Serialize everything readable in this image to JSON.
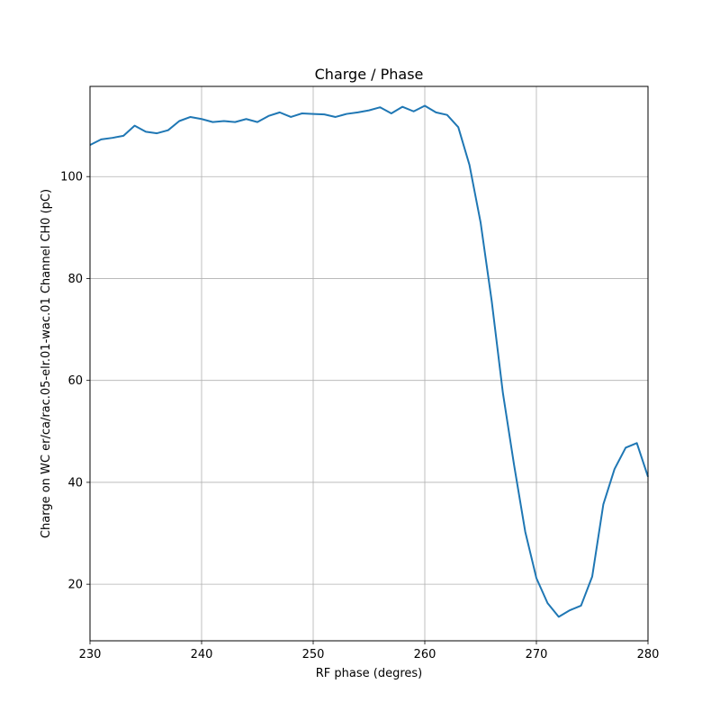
{
  "chart_data": {
    "type": "line",
    "title": "Charge / Phase",
    "xlabel": "RF phase (degres)",
    "ylabel": "Charge on WC er/ca/rac.05-elr.01-wac.01 Channel CH0 (pC)",
    "xlim": [
      230,
      280
    ],
    "ylim": [
      8.9,
      117.7
    ],
    "xticks": [
      230,
      240,
      250,
      260,
      270,
      280
    ],
    "yticks": [
      20,
      40,
      60,
      80,
      100
    ],
    "grid": true,
    "series": [
      {
        "color": "#1f77b4",
        "x": [
          230,
          231,
          232,
          233,
          234,
          235,
          236,
          237,
          238,
          239,
          240,
          241,
          242,
          243,
          244,
          245,
          246,
          247,
          248,
          249,
          250,
          251,
          252,
          253,
          254,
          255,
          256,
          257,
          258,
          259,
          260,
          261,
          262,
          263,
          264,
          265,
          266,
          267,
          268,
          269,
          270,
          271,
          272,
          273,
          274,
          275,
          276,
          277,
          278,
          279,
          280
        ],
        "y": [
          106.2,
          107.3,
          107.6,
          108.0,
          110.0,
          108.8,
          108.5,
          109.1,
          110.9,
          111.7,
          111.3,
          110.7,
          110.9,
          110.7,
          111.3,
          110.7,
          111.9,
          112.6,
          111.7,
          112.4,
          112.3,
          112.2,
          111.7,
          112.3,
          112.6,
          113.0,
          113.6,
          112.4,
          113.7,
          112.8,
          113.9,
          112.6,
          112.1,
          109.7,
          102.3,
          91.0,
          75.5,
          57.5,
          43.4,
          30.3,
          21.2,
          16.3,
          13.6,
          14.9,
          15.8,
          21.5,
          35.7,
          42.6,
          46.8,
          47.7,
          41.1
        ]
      }
    ]
  }
}
